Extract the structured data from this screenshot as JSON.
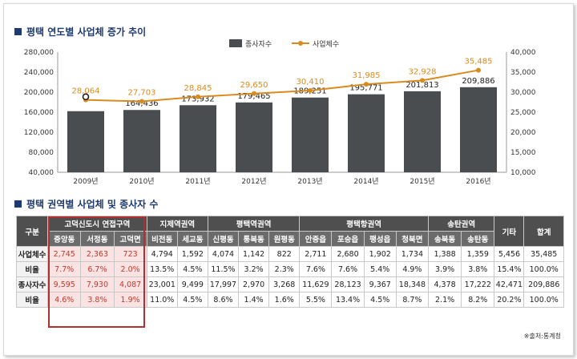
{
  "chart_title": "평택 연도별 사업체 증가 추이",
  "table_title": "평택 권역별 사업체 및 종사자 수",
  "source": "※출처:통계청",
  "chart_data": {
    "type": "bar",
    "categories": [
      "2009년",
      "2010년",
      "2011년",
      "2012년",
      "2013년",
      "2014년",
      "2015년",
      "2016년"
    ],
    "series": [
      {
        "name": "종사자수",
        "type": "bar",
        "axis": "left",
        "color": "#4a4d4f",
        "values": [
          162000,
          164436,
          173932,
          179465,
          189251,
          195771,
          201813,
          209886
        ],
        "labels": [
          "",
          "164,436",
          "173,932",
          "179,465",
          "189,251",
          "195,771",
          "201,813",
          "209,886"
        ]
      },
      {
        "name": "사업체수",
        "type": "line",
        "axis": "right",
        "color": "#d98b1e",
        "values": [
          28064,
          27703,
          28845,
          29650,
          30410,
          31985,
          32928,
          35485
        ],
        "labels": [
          "28,064",
          "27,703",
          "28,845",
          "29,650",
          "30,410",
          "31,985",
          "32,928",
          "35,485"
        ]
      }
    ],
    "ylim": [
      40000,
      280000
    ],
    "y_ticks": [
      "40,000",
      "80,000",
      "120,000",
      "160,000",
      "200,000",
      "240,000",
      "280,000"
    ],
    "y2lim": [
      10000,
      40000
    ],
    "y2_ticks": [
      "10,000",
      "15,000",
      "20,000",
      "25,000",
      "30,000",
      "35,000",
      "40,000"
    ],
    "legend": "top-center",
    "grid": false
  },
  "table": {
    "corner": "구분",
    "groups": [
      {
        "label": "고덕신도시 연접구역",
        "subs": [
          "중앙동",
          "서정동",
          "고덕면"
        ]
      },
      {
        "label": "지제역권역",
        "subs": [
          "비전동",
          "세교동"
        ]
      },
      {
        "label": "평택역권역",
        "subs": [
          "신평동",
          "통복동",
          "원평동"
        ]
      },
      {
        "label": "평택항권역",
        "subs": [
          "안중읍",
          "포승읍",
          "팽성읍",
          "청북면"
        ]
      },
      {
        "label": "송탄권역",
        "subs": [
          "송북동",
          "송탄동"
        ]
      }
    ],
    "etc": "기타",
    "total": "합계",
    "rows": [
      {
        "label": "사업체수",
        "cells": [
          "2,745",
          "2,363",
          "723",
          "4,794",
          "1,592",
          "4,074",
          "1,142",
          "822",
          "2,711",
          "2,680",
          "1,902",
          "1,734",
          "1,388",
          "1,359",
          "5,456",
          "35,485"
        ]
      },
      {
        "label": "비율",
        "cells": [
          "7.7%",
          "6.7%",
          "2.0%",
          "13.5%",
          "4.5%",
          "11.5%",
          "3.2%",
          "2.3%",
          "7.6%",
          "7.6%",
          "5.4%",
          "4.9%",
          "3.9%",
          "3.8%",
          "15.4%",
          "100.0%"
        ]
      },
      {
        "label": "종사자수",
        "cells": [
          "9,595",
          "7,930",
          "4,087",
          "23,001",
          "9,499",
          "17,997",
          "2,970",
          "3,268",
          "11,629",
          "28,123",
          "9,367",
          "18,348",
          "4,378",
          "17,222",
          "42,471",
          "209,886"
        ]
      },
      {
        "label": "비율",
        "cells": [
          "4.6%",
          "3.8%",
          "1.9%",
          "11.0%",
          "4.5%",
          "8.6%",
          "1.4%",
          "1.6%",
          "5.5%",
          "13.4%",
          "4.5%",
          "8.7%",
          "2.1%",
          "8.2%",
          "20.2%",
          "100.0%"
        ]
      }
    ]
  }
}
